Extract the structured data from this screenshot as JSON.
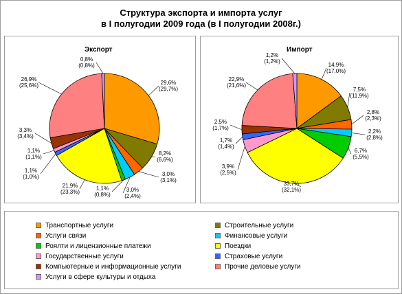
{
  "title_line1": "Структура экспорта и импорта услуг",
  "title_line2": "в I полугодии 2009 года (в I полугодии 2008г.)",
  "chart_data": [
    {
      "type": "pie",
      "title": "Экспорт",
      "slices": [
        {
          "category": "Транспортные услуги",
          "value": 29.6,
          "value_prev": 29.7,
          "color": "#FF9900"
        },
        {
          "category": "Строительные услуги",
          "value": 8.2,
          "value_prev": 6.6,
          "color": "#807A00"
        },
        {
          "category": "Услуги связи",
          "value": 3.0,
          "value_prev": 3.1,
          "color": "#FF6600"
        },
        {
          "category": "Финансовые услуги",
          "value": 3.0,
          "value_prev": 2.4,
          "color": "#00CCFF"
        },
        {
          "category": "Роялти и лицензионные платежи",
          "value": 1.1,
          "value_prev": 0.8,
          "color": "#00CC00"
        },
        {
          "category": "Поездки",
          "value": 21.9,
          "value_prev": 23.3,
          "color": "#FFFF00"
        },
        {
          "category": "Страховые услуги",
          "value": 1.1,
          "value_prev": 1.0,
          "color": "#3366FF"
        },
        {
          "category": "Государственные услуги",
          "value": 1.1,
          "value_prev": 1.1,
          "color": "#FF99CC"
        },
        {
          "category": "Компьютерные и информационные услуги",
          "value": 3.3,
          "value_prev": 3.4,
          "color": "#993300"
        },
        {
          "category": "Прочие деловые услуги",
          "value": 26.9,
          "value_prev": 25.6,
          "color": "#FF8080"
        },
        {
          "category": "Услуги в сфере культуры и отдыха",
          "value": 0.8,
          "value_prev": 0.8,
          "color": "#CC99FF"
        }
      ],
      "labels": [
        {
          "line1": "29,6%",
          "line2": "(29,7%)"
        },
        {
          "line1": "8,2%",
          "line2": "(6,6%)"
        },
        {
          "line1": "3,0%",
          "line2": "(3,1%)"
        },
        {
          "line1": "3,0%",
          "line2": "(2,4%)"
        },
        {
          "line1": "1,1%",
          "line2": "(0,8%)"
        },
        {
          "line1": "21,9%",
          "line2": "(23,3%)"
        },
        {
          "line1": "1,1%",
          "line2": "(1,0%)"
        },
        {
          "line1": "1,1%",
          "line2": "(1,1%)"
        },
        {
          "line1": "3,3%",
          "line2": "(3,4%)"
        },
        {
          "line1": "26,9%",
          "line2": "(25,6%)"
        },
        {
          "line1": "0,8%",
          "line2": "(0,8%)"
        }
      ]
    },
    {
      "type": "pie",
      "title": "Импорт",
      "slices": [
        {
          "category": "Транспортные услуги",
          "value": 14.9,
          "value_prev": 17.0,
          "color": "#FF9900"
        },
        {
          "category": "Строительные услуги",
          "value": 7.5,
          "value_prev": 11.9,
          "color": "#807A00"
        },
        {
          "category": "Услуги связи",
          "value": 2.8,
          "value_prev": 2.3,
          "color": "#FF6600"
        },
        {
          "category": "Финансовые услуги",
          "value": 2.2,
          "value_prev": 2.8,
          "color": "#00CCFF"
        },
        {
          "category": "Роялти и лицензионные платежи",
          "value": 6.7,
          "value_prev": 5.5,
          "color": "#00CC00"
        },
        {
          "category": "Поездки",
          "value": 33.7,
          "value_prev": 32.1,
          "color": "#FFFF00"
        },
        {
          "category": "Государственные услуги",
          "value": 3.9,
          "value_prev": 2.5,
          "color": "#FF99CC"
        },
        {
          "category": "Страховые услуги",
          "value": 1.7,
          "value_prev": 1.4,
          "color": "#3366FF"
        },
        {
          "category": "Компьютерные и информационные услуги",
          "value": 2.5,
          "value_prev": 1.7,
          "color": "#993300"
        },
        {
          "category": "Прочие деловые услуги",
          "value": 22.9,
          "value_prev": 21.6,
          "color": "#FF8080"
        },
        {
          "category": "Услуги в сфере культуры и отдыха",
          "value": 1.2,
          "value_prev": 1.2,
          "color": "#CC99FF"
        }
      ],
      "labels": [
        {
          "line1": "14,9%",
          "line2": "(17,0%)"
        },
        {
          "line1": "7,5%",
          "line2": "(11,9%)"
        },
        {
          "line1": "2,8%",
          "line2": "(2,3%)"
        },
        {
          "line1": "2,2%",
          "line2": "(2,8%)"
        },
        {
          "line1": "6,7%",
          "line2": "(5,5%)"
        },
        {
          "line1": "33,7%",
          "line2": "(32,1%)"
        },
        {
          "line1": "3,9%",
          "line2": "(2,5%)"
        },
        {
          "line1": "1,7%",
          "line2": "(1,4%)"
        },
        {
          "line1": "2,5%",
          "line2": "(1,7%)"
        },
        {
          "line1": "22,9%",
          "line2": "(21,6%)"
        },
        {
          "line1": "1,2%",
          "line2": "(1,2%)"
        }
      ]
    }
  ],
  "legend": [
    {
      "label": "Транспортные услуги",
      "color": "#FF9900"
    },
    {
      "label": "Строительные услуги",
      "color": "#807A00"
    },
    {
      "label": "Услуги связи",
      "color": "#FF6600"
    },
    {
      "label": "Финансовые услуги",
      "color": "#00CCFF"
    },
    {
      "label": "Роялти и лицензионные платежи",
      "color": "#00CC00"
    },
    {
      "label": "Поездки",
      "color": "#FFFF00"
    },
    {
      "label": "Государственные услуги",
      "color": "#FF99CC"
    },
    {
      "label": "Страховые услуги",
      "color": "#3366FF"
    },
    {
      "label": "Компьютерные и информационные услуги",
      "color": "#993300"
    },
    {
      "label": "Прочие деловые услуги",
      "color": "#FF8080"
    },
    {
      "label": "Услуги в сфере культуры и отдыха",
      "color": "#CC99FF"
    }
  ]
}
